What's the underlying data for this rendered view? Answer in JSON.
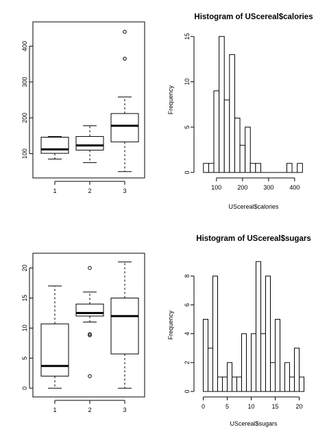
{
  "chart_data": [
    {
      "type": "box",
      "title": "",
      "xlabel": "",
      "ylabel": "",
      "categories": [
        "1",
        "2",
        "3"
      ],
      "yticks": [
        "100",
        "200",
        "300",
        "400"
      ],
      "ylim": [
        40,
        460
      ],
      "boxes": [
        {
          "name": "1",
          "whisker_low": 85,
          "q1": 101,
          "median": 112,
          "q3": 146,
          "whisker_high": 148,
          "outliers": []
        },
        {
          "name": "2",
          "whisker_low": 75,
          "q1": 110,
          "median": 123,
          "q3": 148,
          "whisker_high": 178,
          "outliers": []
        },
        {
          "name": "3",
          "whisker_low": 50,
          "q1": 133,
          "median": 178,
          "q3": 212,
          "whisker_high": 258,
          "outliers": [
            365,
            440
          ]
        }
      ]
    },
    {
      "type": "histogram",
      "title": "Histogram of UScereal$calories",
      "xlabel": "UScereal$calories",
      "ylabel": "Frequency",
      "xticks": [
        "100",
        "200",
        "300",
        "400"
      ],
      "yticks": [
        "0",
        "5",
        "10",
        "15"
      ],
      "xlim": [
        40,
        445
      ],
      "ylim": [
        0,
        16
      ],
      "bin_start": 50,
      "bin_width": 20,
      "counts": [
        1,
        1,
        9,
        15,
        8,
        13,
        6,
        3,
        5,
        1,
        1,
        0,
        0,
        0,
        0,
        0,
        1,
        0,
        1
      ]
    },
    {
      "type": "box",
      "title": "",
      "xlabel": "",
      "ylabel": "",
      "categories": [
        "1",
        "2",
        "3"
      ],
      "yticks": [
        "0",
        "5",
        "10",
        "15",
        "20"
      ],
      "ylim": [
        -1,
        22
      ],
      "boxes": [
        {
          "name": "1",
          "whisker_low": 0,
          "q1": 2,
          "median": 3.7,
          "q3": 10.7,
          "whisker_high": 17,
          "outliers": []
        },
        {
          "name": "2",
          "whisker_low": 11,
          "q1": 12,
          "median": 12.5,
          "q3": 14,
          "whisker_high": 16,
          "outliers": [
            20,
            9,
            8.8,
            2
          ]
        },
        {
          "name": "3",
          "whisker_low": 0,
          "q1": 5.7,
          "median": 12,
          "q3": 15,
          "whisker_high": 21,
          "outliers": []
        }
      ]
    },
    {
      "type": "histogram",
      "title": "Histogram of UScereal$sugars",
      "xlabel": "UScereal$sugars",
      "ylabel": "Frequency",
      "xticks": [
        "0",
        "5",
        "10",
        "15",
        "20"
      ],
      "yticks": [
        "0",
        "2",
        "4",
        "6",
        "8"
      ],
      "xlim": [
        -0.5,
        21.5
      ],
      "ylim": [
        0,
        9.2
      ],
      "bin_start": 0,
      "bin_width": 1,
      "counts": [
        5,
        3,
        8,
        1,
        1,
        2,
        1,
        1,
        4,
        0,
        4,
        9,
        4,
        8,
        2,
        5,
        0,
        2,
        1,
        3,
        1
      ]
    }
  ]
}
